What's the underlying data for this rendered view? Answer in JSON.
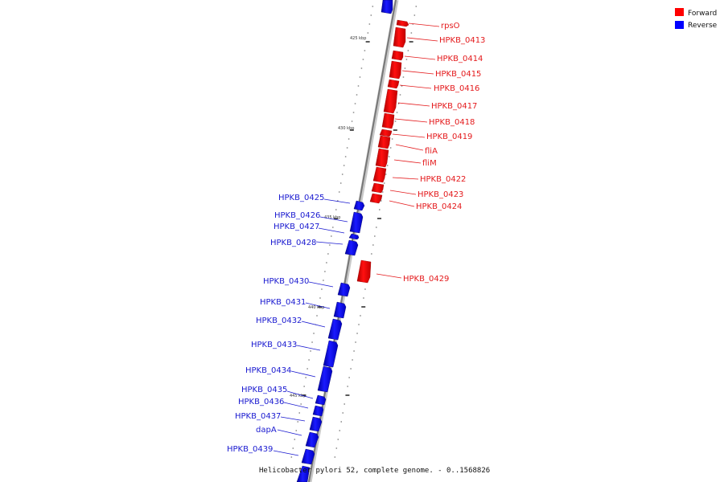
{
  "caption": "Helicobacter pylori 52, complete genome. - 0..1568826",
  "legend": [
    {
      "label": "Forward",
      "color": "#ff0000"
    },
    {
      "label": "Reverse",
      "color": "#0000ff"
    }
  ],
  "scale_labels": [
    "425 kbp",
    "430 kbp",
    "435 kbp",
    "440 kbp",
    "445 kbp"
  ],
  "forward_genes": [
    "rpsO",
    "HPKB_0413",
    "HPKB_0414",
    "HPKB_0415",
    "HPKB_0416",
    "HPKB_0417",
    "HPKB_0418",
    "HPKB_0419",
    "fliA",
    "fliM",
    "HPKB_0422",
    "HPKB_0423",
    "HPKB_0424",
    "HPKB_0429"
  ],
  "reverse_genes": [
    "HPKB_0425",
    "HPKB_0426",
    "HPKB_0427",
    "HPKB_0428",
    "HPKB_0430",
    "HPKB_0431",
    "HPKB_0432",
    "HPKB_0433",
    "HPKB_0434",
    "HPKB_0435",
    "HPKB_0436",
    "HPKB_0437",
    "dapA",
    "HPKB_0439"
  ]
}
